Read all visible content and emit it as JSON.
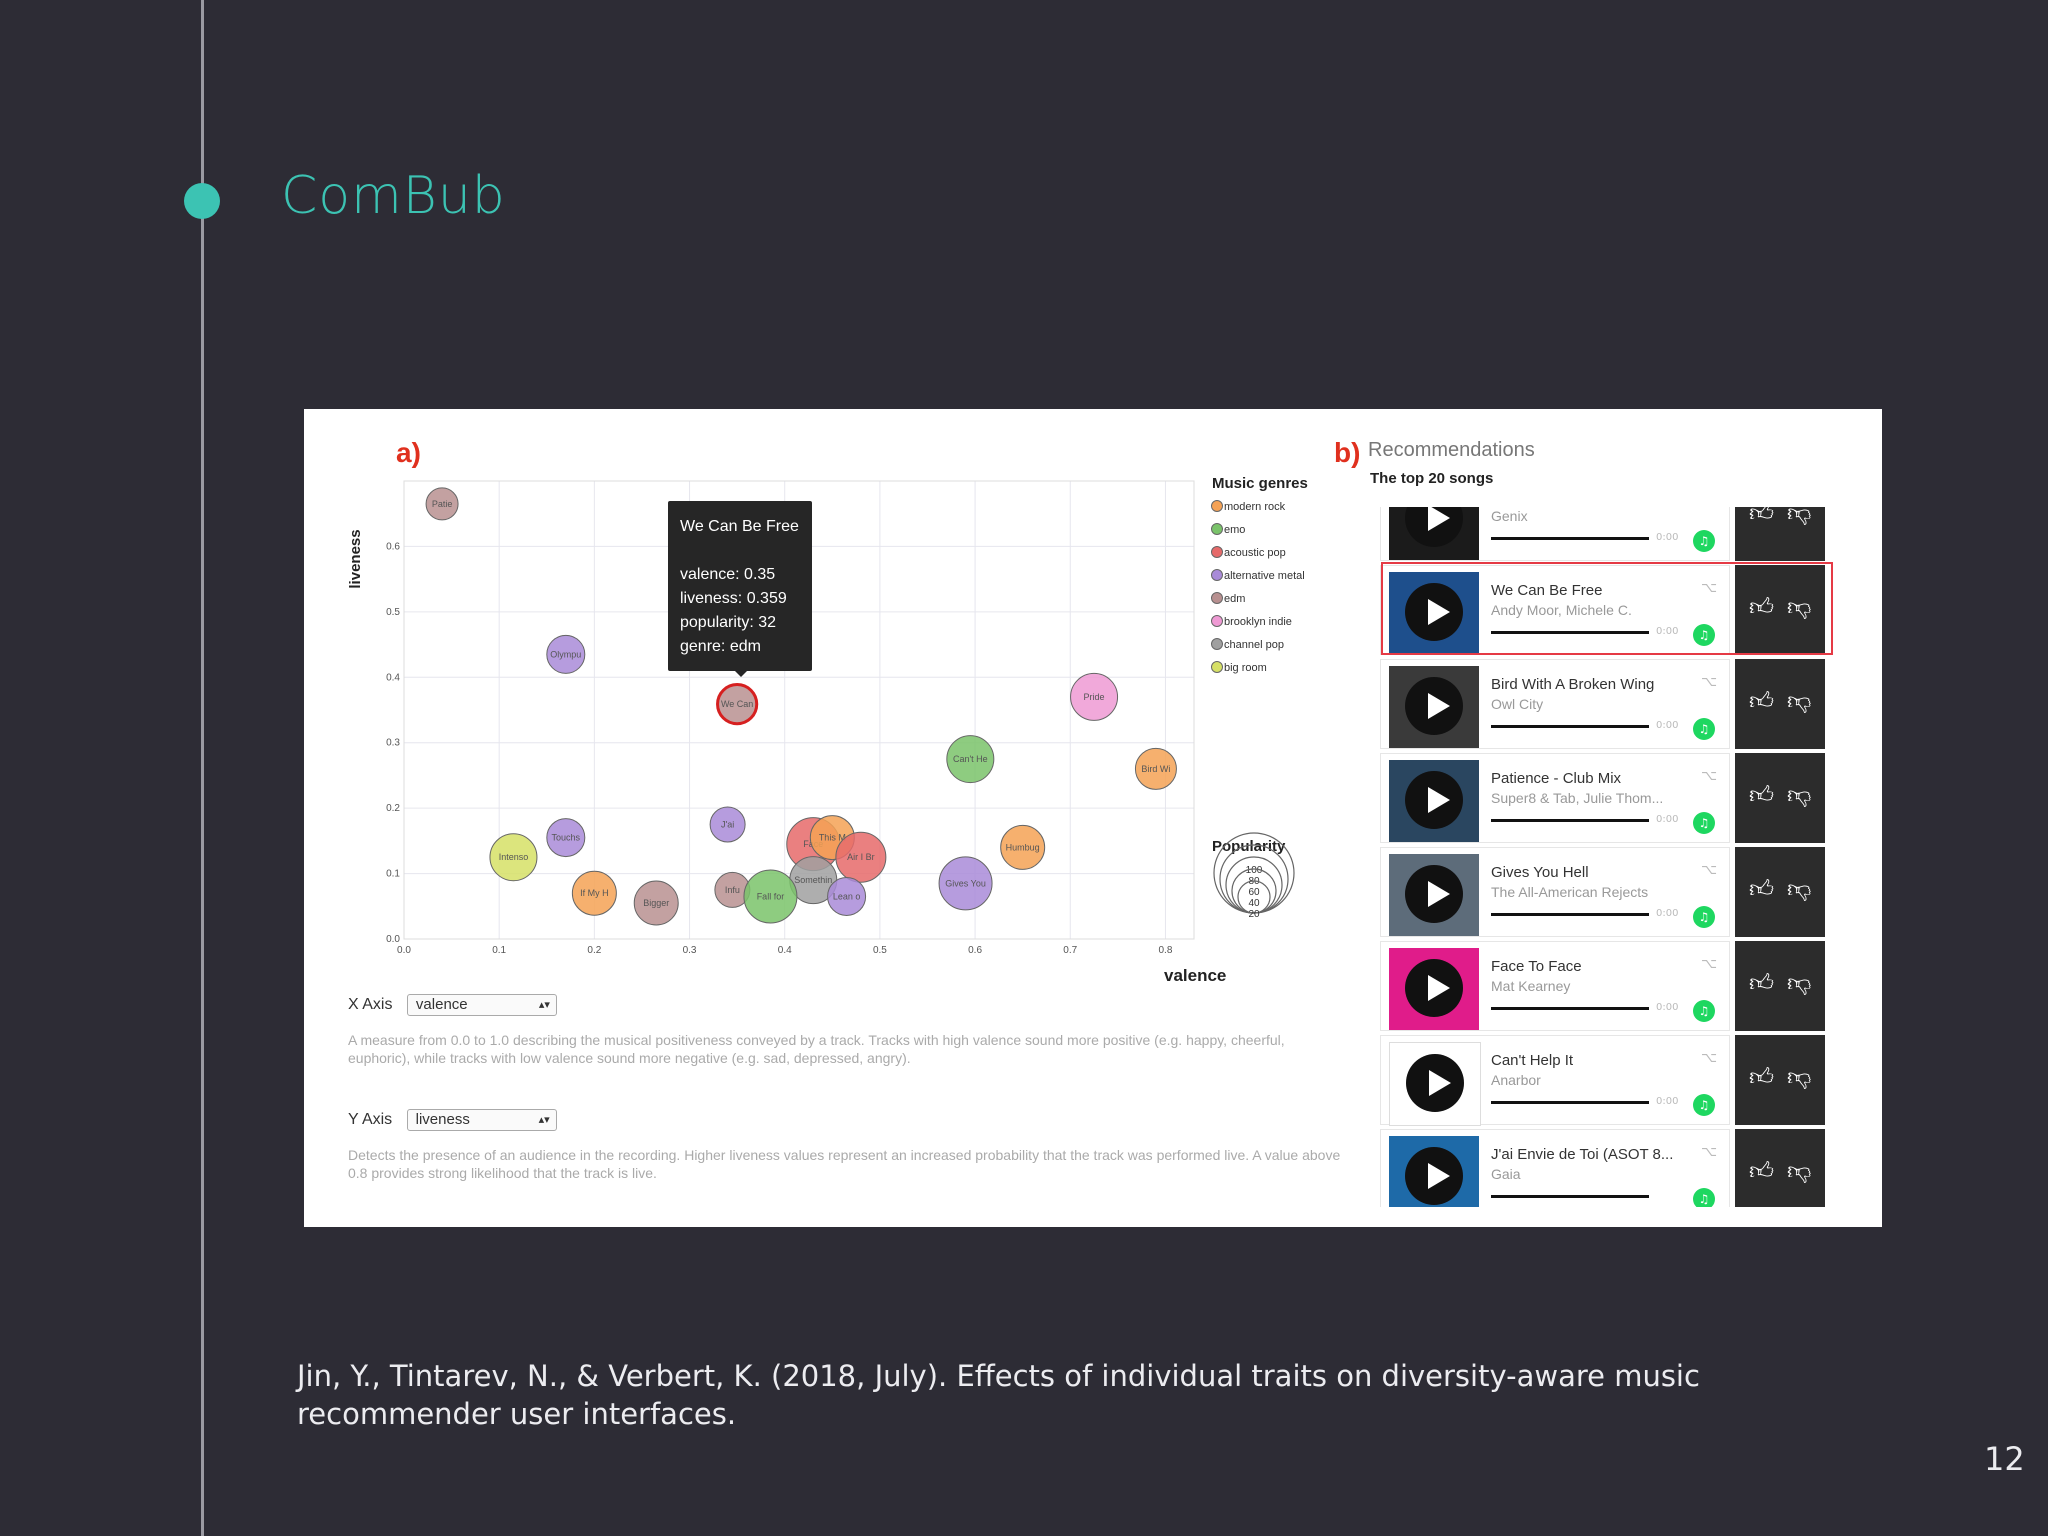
{
  "slide": {
    "title": "ComBub",
    "citation": "Jin, Y., Tintarev, N., & Verbert, K. (2018, July). Effects of individual traits on diversity-aware music recommender user interfaces.",
    "page_number": "12"
  },
  "figure": {
    "panel_a_label": "a)",
    "panel_b_label": "b)",
    "recommendations_title": "Recommendations",
    "recommendations_subtitle": "The top 20 songs",
    "x_axis": {
      "control_label": "X Axis",
      "selected": "valence",
      "description": "A measure from 0.0 to 1.0 describing the musical positiveness conveyed by a track. Tracks with high valence sound more positive (e.g. happy, cheerful, euphoric), while tracks with low valence sound more negative (e.g. sad, depressed, angry)."
    },
    "y_axis": {
      "control_label": "Y Axis",
      "selected": "liveness",
      "description": "Detects the presence of an audience in the recording. Higher liveness values represent an increased probability that the track was performed live. A value above 0.8 provides strong likelihood that the track is live."
    },
    "tooltip": {
      "title": "We Can Be Free",
      "lines": [
        "valence: 0.35",
        "liveness: 0.359",
        "popularity: 32",
        "genre: edm"
      ]
    },
    "recommendations": [
      {
        "song": "",
        "artist": "Genix",
        "time": "0:00",
        "thumb_color": "#1b1b1b"
      },
      {
        "song": "We Can Be Free",
        "artist": "Andy Moor, Michele C.",
        "time": "0:00",
        "thumb_color": "#1e4f8c"
      },
      {
        "song": "Bird With A Broken Wing",
        "artist": "Owl City",
        "time": "0:00",
        "thumb_color": "#3a3a3a"
      },
      {
        "song": "Patience - Club Mix",
        "artist": "Super8 & Tab, Julie Thom...",
        "time": "0:00",
        "thumb_color": "#2a4660"
      },
      {
        "song": "Gives You Hell",
        "artist": "The All-American Rejects",
        "time": "0:00",
        "thumb_color": "#5d6c7a"
      },
      {
        "song": "Face To Face",
        "artist": "Mat Kearney",
        "time": "0:00",
        "thumb_color": "#e01c8a"
      },
      {
        "song": "Can't Help It",
        "artist": "Anarbor",
        "time": "0:00",
        "thumb_color": "#ffffff"
      },
      {
        "song": "J'ai Envie de Toi (ASOT 8...",
        "artist": "Gaia",
        "time": "",
        "thumb_color": "#1e6aa8"
      }
    ]
  },
  "chart_data": {
    "type": "scatter",
    "xlabel": "valence",
    "ylabel": "liveness",
    "xlim": [
      0.0,
      0.83
    ],
    "ylim": [
      0.0,
      0.7
    ],
    "x_ticks": [
      "0.0",
      "0.1",
      "0.2",
      "0.3",
      "0.4",
      "0.5",
      "0.6",
      "0.7",
      "0.8"
    ],
    "y_ticks": [
      "0.0",
      "0.1",
      "0.2",
      "0.3",
      "0.4",
      "0.5",
      "0.6"
    ],
    "grid": true,
    "legend_title": "Music genres",
    "legend": [
      {
        "name": "modern rock",
        "color": "#f5a255"
      },
      {
        "name": "emo",
        "color": "#7ac36a"
      },
      {
        "name": "acoustic pop",
        "color": "#e66a6a"
      },
      {
        "name": "alternative metal",
        "color": "#a98bd8"
      },
      {
        "name": "edm",
        "color": "#b89090"
      },
      {
        "name": "brooklyn indie",
        "color": "#ef9ad4"
      },
      {
        "name": "channel pop",
        "color": "#a0a0a0"
      },
      {
        "name": "big room",
        "color": "#d6e066"
      }
    ],
    "size_legend": {
      "title": "Popularity",
      "values": [
        "100",
        "80",
        "60",
        "40",
        "20"
      ]
    },
    "points": [
      {
        "label": "Patie",
        "x": 0.04,
        "y": 0.665,
        "popularity": 20,
        "genre": "edm"
      },
      {
        "label": "Olympu",
        "x": 0.17,
        "y": 0.435,
        "popularity": 30,
        "genre": "alternative metal"
      },
      {
        "label": "We Can",
        "x": 0.35,
        "y": 0.359,
        "popularity": 32,
        "genre": "edm"
      },
      {
        "label": "Pride",
        "x": 0.725,
        "y": 0.37,
        "popularity": 45,
        "genre": "brooklyn indie"
      },
      {
        "label": "Can't He",
        "x": 0.595,
        "y": 0.275,
        "popularity": 45,
        "genre": "emo"
      },
      {
        "label": "Bird Wi",
        "x": 0.79,
        "y": 0.26,
        "popularity": 35,
        "genre": "modern rock"
      },
      {
        "label": "J'ai",
        "x": 0.34,
        "y": 0.175,
        "popularity": 25,
        "genre": "alternative metal"
      },
      {
        "label": "Touchs",
        "x": 0.17,
        "y": 0.155,
        "popularity": 30,
        "genre": "alternative metal"
      },
      {
        "label": "Intenso",
        "x": 0.115,
        "y": 0.125,
        "popularity": 45,
        "genre": "big room"
      },
      {
        "label": "Humbug",
        "x": 0.65,
        "y": 0.14,
        "popularity": 40,
        "genre": "modern rock"
      },
      {
        "label": "Face",
        "x": 0.43,
        "y": 0.145,
        "popularity": 55,
        "genre": "acoustic pop"
      },
      {
        "label": "This M",
        "x": 0.45,
        "y": 0.155,
        "popularity": 40,
        "genre": "modern rock"
      },
      {
        "label": "Air I Br",
        "x": 0.48,
        "y": 0.125,
        "popularity": 50,
        "genre": "acoustic pop"
      },
      {
        "label": "Somethin",
        "x": 0.43,
        "y": 0.09,
        "popularity": 45,
        "genre": "channel pop"
      },
      {
        "label": "Gives You",
        "x": 0.59,
        "y": 0.085,
        "popularity": 55,
        "genre": "alternative metal"
      },
      {
        "label": "If My H",
        "x": 0.2,
        "y": 0.07,
        "popularity": 40,
        "genre": "modern rock"
      },
      {
        "label": "Bigger",
        "x": 0.265,
        "y": 0.055,
        "popularity": 40,
        "genre": "edm"
      },
      {
        "label": "Infu",
        "x": 0.345,
        "y": 0.075,
        "popularity": 25,
        "genre": "edm"
      },
      {
        "label": "Fall for",
        "x": 0.385,
        "y": 0.065,
        "popularity": 55,
        "genre": "emo"
      },
      {
        "label": "Lean o",
        "x": 0.465,
        "y": 0.065,
        "popularity": 30,
        "genre": "alternative metal"
      }
    ]
  }
}
